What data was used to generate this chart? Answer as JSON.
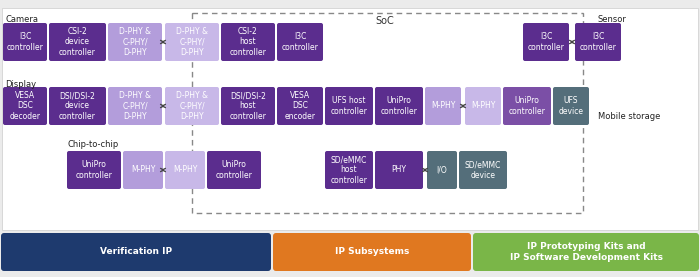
{
  "dark_purple": "#5b2d8e",
  "medium_purple": "#7b4fa6",
  "light_purple": "#b39ddb",
  "lighter_purple": "#c8b8e8",
  "gray_blue": "#546e7a",
  "dark_gray": "#546e7a",
  "bar_colors": [
    "#1e3a6e",
    "#e07820",
    "#7ab648"
  ],
  "bar_texts": [
    "Verification IP",
    "IP Subsystems",
    "IP Prototyping Kits and\nIP Software Development Kits"
  ],
  "soc_label": "SoC",
  "camera_label": "Camera",
  "display_label": "Display",
  "chip_label": "Chip-to-chip",
  "sensor_label": "Sensor",
  "mobile_label": "Mobile storage",
  "bg": "#ebebeb"
}
